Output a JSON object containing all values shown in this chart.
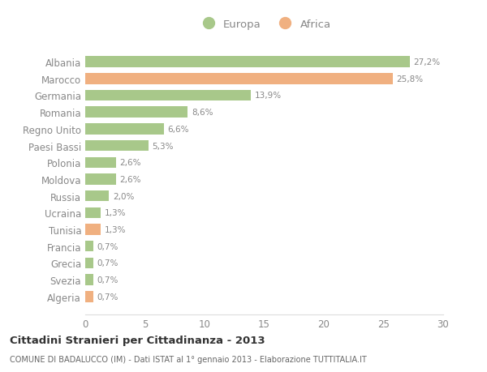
{
  "categories": [
    "Albania",
    "Marocco",
    "Germania",
    "Romania",
    "Regno Unito",
    "Paesi Bassi",
    "Polonia",
    "Moldova",
    "Russia",
    "Ucraina",
    "Tunisia",
    "Francia",
    "Grecia",
    "Svezia",
    "Algeria"
  ],
  "values": [
    27.2,
    25.8,
    13.9,
    8.6,
    6.6,
    5.3,
    2.6,
    2.6,
    2.0,
    1.3,
    1.3,
    0.7,
    0.7,
    0.7,
    0.7
  ],
  "labels": [
    "27,2%",
    "25,8%",
    "13,9%",
    "8,6%",
    "6,6%",
    "5,3%",
    "2,6%",
    "2,6%",
    "2,0%",
    "1,3%",
    "1,3%",
    "0,7%",
    "0,7%",
    "0,7%",
    "0,7%"
  ],
  "continents": [
    "Europa",
    "Africa",
    "Europa",
    "Europa",
    "Europa",
    "Europa",
    "Europa",
    "Europa",
    "Europa",
    "Europa",
    "Africa",
    "Europa",
    "Europa",
    "Europa",
    "Africa"
  ],
  "color_europa": "#a8c88a",
  "color_africa": "#f0b080",
  "bg_color": "#ffffff",
  "title": "Cittadini Stranieri per Cittadinanza - 2013",
  "subtitle": "COMUNE DI BADALUCCO (IM) - Dati ISTAT al 1° gennaio 2013 - Elaborazione TUTTITALIA.IT",
  "xlim": [
    0,
    30
  ],
  "xticks": [
    0,
    5,
    10,
    15,
    20,
    25,
    30
  ],
  "legend_labels": [
    "Europa",
    "Africa"
  ],
  "legend_colors": [
    "#a8c88a",
    "#f0b080"
  ],
  "label_color": "#888888",
  "title_color": "#333333",
  "subtitle_color": "#666666"
}
